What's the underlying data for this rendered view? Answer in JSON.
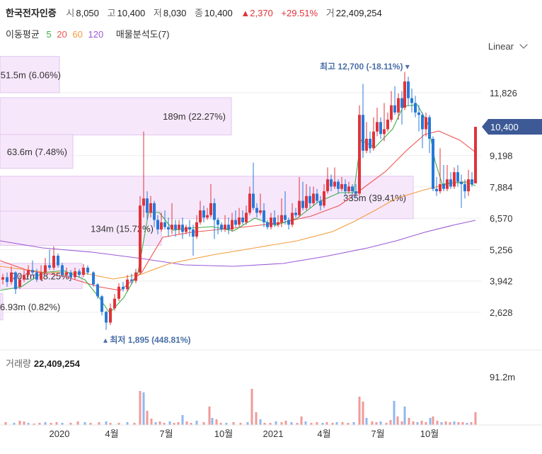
{
  "header": {
    "name": "한국전자인증",
    "open_label": "시",
    "open": "8,050",
    "high_label": "고",
    "high": "10,400",
    "low_label": "저",
    "low": "8,030",
    "close_label": "종",
    "close": "10,400",
    "change": "▲2,370",
    "change_pct": "+29.51%",
    "volume_label": "거",
    "volume": "22,409,254"
  },
  "ma_legend": {
    "label": "이동평균",
    "items": [
      {
        "period": "5",
        "color": "#3fae49"
      },
      {
        "period": "20",
        "color": "#ef5350"
      },
      {
        "period": "60",
        "color": "#f39c3d"
      },
      {
        "period": "120",
        "color": "#9b59d6"
      }
    ],
    "volume_profile_label": "매물분석도(7)"
  },
  "scale_selector": "Linear",
  "volume_panel": {
    "label": "거래량",
    "value": "22,409,254"
  },
  "chart_data": {
    "type": "candlestick",
    "y_ticks": [
      2628,
      3942,
      5256,
      6570,
      7884,
      9198,
      11826
    ],
    "y_tick_labels": [
      "2,628",
      "3,942",
      "5,256",
      "6,570",
      "7,884",
      "9,198",
      "11,826"
    ],
    "ylim": [
      1500,
      13500
    ],
    "current_price_label": "10,400",
    "current_price": 10400,
    "max_annotation": "최고 12,700 (-18.11%) ▾",
    "min_annotation": "▴ 최저 1,895 (448.81%)",
    "x_tick_labels": [
      "2020",
      "4월",
      "7월",
      "10월",
      "2021",
      "4월",
      "7월",
      "10월"
    ],
    "volume_axis_label": "91.2m",
    "volume_profile": [
      {
        "label": "51.5m (6.06%)",
        "price_from": 11830,
        "price_to": 13350,
        "strength": 0.27
      },
      {
        "label": "189m (22.27%)",
        "price_from": 10060,
        "price_to": 11620,
        "strength": 1.0
      },
      {
        "label": "63.6m (7.48%)",
        "price_from": 8660,
        "price_to": 10080,
        "strength": 0.33
      },
      {
        "label": "335m (39.41%)",
        "price_from": 6550,
        "price_to": 8330,
        "strength": 1.0
      },
      {
        "label": "134m (15.72%)",
        "price_from": 5430,
        "price_to": 6870,
        "strength": 0.75
      },
      {
        "label": "70.1m (8.25%)",
        "price_from": 3620,
        "price_to": 4680,
        "strength": 0.37
      },
      {
        "label": "6.93m (0.82%)",
        "price_from": 2310,
        "price_to": 3420,
        "strength": 0.02
      }
    ]
  }
}
